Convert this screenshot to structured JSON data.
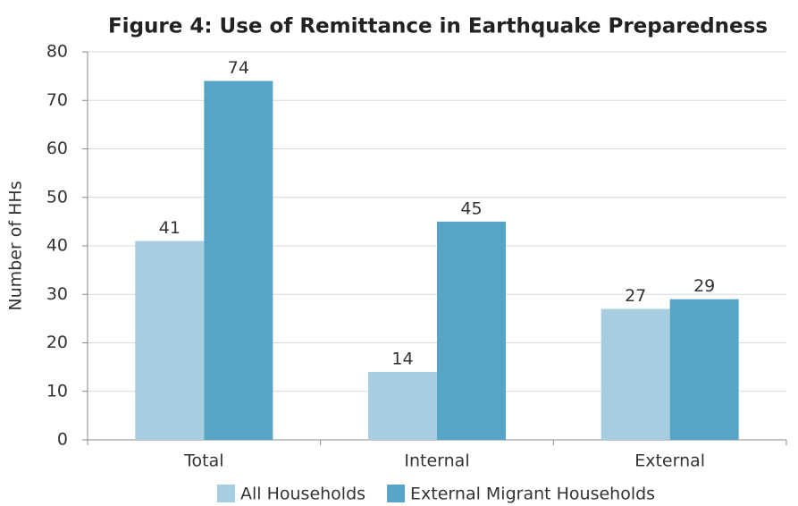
{
  "chart_data": {
    "type": "bar",
    "title": "Figure 4: Use of Remittance in Earthquake Preparedness",
    "y_label": "Number of HHs",
    "categories": [
      "Total",
      "Internal",
      "External"
    ],
    "series": [
      {
        "name": "All Households",
        "color": "#a6cde0",
        "values": [
          41,
          14,
          27
        ]
      },
      {
        "name": "External Migrant Households",
        "color": "#57a5c6",
        "values": [
          74,
          45,
          29
        ]
      }
    ],
    "ylim": [
      0,
      80
    ],
    "yticks": [
      0,
      10,
      20,
      30,
      40,
      50,
      60,
      70,
      80
    ],
    "grid": true,
    "legend": "bottom"
  }
}
